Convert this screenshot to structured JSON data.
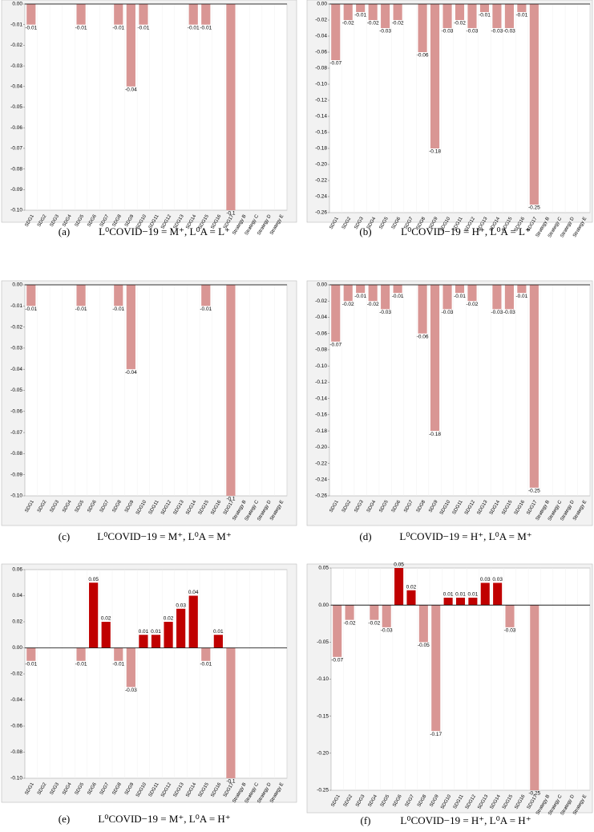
{
  "chart_data": [
    {
      "type": "bar",
      "label": "(a)",
      "caption": "L⁰COVID−19 = M⁺, L⁰A = L⁺",
      "categories": [
        "SDG1",
        "SDG2",
        "SDG3",
        "SDG4",
        "SDG5",
        "SDG6",
        "SDG7",
        "SDG8",
        "SDG9",
        "SDG10",
        "SDG11",
        "SDG12",
        "SDG13",
        "SDG14",
        "SDG15",
        "SDG16",
        "SDG17",
        "Strategy B",
        "Strategy C",
        "Strategy D",
        "Strategy E"
      ],
      "values": [
        -0.01,
        null,
        null,
        null,
        -0.01,
        null,
        null,
        -0.01,
        -0.04,
        -0.01,
        null,
        null,
        null,
        -0.01,
        -0.01,
        null,
        -0.1,
        null,
        null,
        null,
        null
      ],
      "negative_color": "#d99694",
      "ylim": [
        -0.1,
        0
      ],
      "yticks": [
        {
          "value": 0,
          "label": "0.00"
        },
        {
          "value": -0.01,
          "label": "-0.01"
        },
        {
          "value": -0.02,
          "label": "-0.02"
        },
        {
          "value": -0.03,
          "label": "-0.03"
        },
        {
          "value": -0.04,
          "label": "-0.04"
        },
        {
          "value": -0.05,
          "label": "-0.05"
        },
        {
          "value": -0.06,
          "label": "-0.06"
        },
        {
          "value": -0.07,
          "label": "-0.07"
        },
        {
          "value": -0.08,
          "label": "-0.08"
        },
        {
          "value": -0.09,
          "label": "-0.09"
        },
        {
          "value": -0.1,
          "label": "-0.10"
        }
      ]
    },
    {
      "type": "bar",
      "label": "(b)",
      "caption": "L⁰COVID−19 = H⁺, L⁰A = L⁺",
      "categories": [
        "SDG1",
        "SDG2",
        "SDG3",
        "SDG4",
        "SDG5",
        "SDG6",
        "SDG7",
        "SDG8",
        "SDG9",
        "SDG10",
        "SDG11",
        "SDG12",
        "SDG13",
        "SDG14",
        "SDG15",
        "SDG16",
        "SDG17",
        "Strategy B",
        "Strategy C",
        "Strategy D",
        "Strategy E"
      ],
      "values": [
        -0.07,
        -0.02,
        -0.01,
        -0.02,
        -0.03,
        -0.02,
        null,
        -0.06,
        -0.18,
        -0.03,
        -0.02,
        -0.03,
        -0.01,
        -0.03,
        -0.03,
        -0.01,
        -0.25,
        null,
        null,
        null,
        null
      ],
      "negative_color": "#d99694",
      "ylim": [
        -0.26,
        0
      ],
      "yticks": [
        {
          "value": 0,
          "label": "0.00"
        },
        {
          "value": -0.02,
          "label": "-0.02"
        },
        {
          "value": -0.04,
          "label": "-0.04"
        },
        {
          "value": -0.06,
          "label": "-0.06"
        },
        {
          "value": -0.08,
          "label": "-0.08"
        },
        {
          "value": -0.1,
          "label": "-0.10"
        },
        {
          "value": -0.12,
          "label": "-0.12"
        },
        {
          "value": -0.14,
          "label": "-0.14"
        },
        {
          "value": -0.16,
          "label": "-0.16"
        },
        {
          "value": -0.18,
          "label": "-0.18"
        },
        {
          "value": -0.2,
          "label": "-0.20"
        },
        {
          "value": -0.22,
          "label": "-0.22"
        },
        {
          "value": -0.24,
          "label": "-0.24"
        },
        {
          "value": -0.26,
          "label": "-0.26"
        }
      ]
    },
    {
      "type": "bar",
      "label": "(c)",
      "caption": "L⁰COVID−19 = M⁺, L⁰A = M⁺",
      "categories": [
        "SDG1",
        "SDG2",
        "SDG3",
        "SDG4",
        "SDG5",
        "SDG6",
        "SDG7",
        "SDG8",
        "SDG9",
        "SDG10",
        "SDG11",
        "SDG12",
        "SDG13",
        "SDG14",
        "SDG15",
        "SDG16",
        "SDG17",
        "Strategy B",
        "Strategy C",
        "Strategy D",
        "Strategy E"
      ],
      "values": [
        -0.01,
        null,
        null,
        null,
        -0.01,
        null,
        null,
        -0.01,
        -0.04,
        null,
        null,
        null,
        null,
        null,
        -0.01,
        null,
        -0.1,
        null,
        null,
        null,
        null
      ],
      "negative_color": "#d99694",
      "ylim": [
        -0.1,
        0
      ],
      "yticks": [
        {
          "value": 0,
          "label": "0.00"
        },
        {
          "value": -0.01,
          "label": "-0.01"
        },
        {
          "value": -0.02,
          "label": "-0.02"
        },
        {
          "value": -0.03,
          "label": "-0.03"
        },
        {
          "value": -0.04,
          "label": "-0.04"
        },
        {
          "value": -0.05,
          "label": "-0.05"
        },
        {
          "value": -0.06,
          "label": "-0.06"
        },
        {
          "value": -0.07,
          "label": "-0.07"
        },
        {
          "value": -0.08,
          "label": "-0.08"
        },
        {
          "value": -0.09,
          "label": "-0.09"
        },
        {
          "value": -0.1,
          "label": "-0.10"
        }
      ]
    },
    {
      "type": "bar",
      "label": "(d)",
      "caption": "L⁰COVID−19 = H⁺, L⁰A = M⁺",
      "categories": [
        "SDG1",
        "SDG2",
        "SDG3",
        "SDG4",
        "SDG5",
        "SDG6",
        "SDG7",
        "SDG8",
        "SDG9",
        "SDG10",
        "SDG11",
        "SDG12",
        "SDG13",
        "SDG14",
        "SDG15",
        "SDG16",
        "SDG17",
        "Strategy B",
        "Strategy C",
        "Strategy D",
        "Strategy E"
      ],
      "values": [
        -0.07,
        -0.02,
        -0.01,
        -0.02,
        -0.03,
        -0.01,
        null,
        -0.06,
        -0.18,
        -0.03,
        -0.01,
        -0.02,
        null,
        -0.03,
        -0.03,
        -0.01,
        -0.25,
        null,
        null,
        null,
        null
      ],
      "negative_color": "#d99694",
      "ylim": [
        -0.26,
        0
      ],
      "yticks": [
        {
          "value": 0,
          "label": "0.00"
        },
        {
          "value": -0.02,
          "label": "-0.02"
        },
        {
          "value": -0.04,
          "label": "-0.04"
        },
        {
          "value": -0.06,
          "label": "-0.06"
        },
        {
          "value": -0.08,
          "label": "-0.08"
        },
        {
          "value": -0.1,
          "label": "-0.10"
        },
        {
          "value": -0.12,
          "label": "-0.12"
        },
        {
          "value": -0.14,
          "label": "-0.14"
        },
        {
          "value": -0.16,
          "label": "-0.16"
        },
        {
          "value": -0.18,
          "label": "-0.18"
        },
        {
          "value": -0.2,
          "label": "-0.20"
        },
        {
          "value": -0.22,
          "label": "-0.22"
        },
        {
          "value": -0.24,
          "label": "-0.24"
        },
        {
          "value": -0.26,
          "label": "-0.26"
        }
      ]
    },
    {
      "type": "bar",
      "label": "(e)",
      "caption": "L⁰COVID−19 = M⁺, L⁰A = H⁺",
      "categories": [
        "SDG1",
        "SDG2",
        "SDG3",
        "SDG4",
        "SDG5",
        "SDG6",
        "SDG7",
        "SDG8",
        "SDG9",
        "SDG10",
        "SDG11",
        "SDG12",
        "SDG13",
        "SDG14",
        "SDG15",
        "SDG16",
        "SDG17",
        "Strategy B",
        "Strategy C",
        "Strategy D",
        "Strategy E"
      ],
      "values": [
        -0.01,
        null,
        null,
        null,
        -0.01,
        0.05,
        0.02,
        -0.01,
        -0.03,
        0.01,
        0.01,
        0.02,
        0.03,
        0.04,
        -0.01,
        0.01,
        -0.1,
        null,
        null,
        null,
        null
      ],
      "negative_color": "#d99694",
      "positive_color": "#c00000",
      "ylim": [
        -0.1,
        0.06
      ],
      "yticks": [
        {
          "value": 0.06,
          "label": "0.06"
        },
        {
          "value": 0.04,
          "label": "0.04"
        },
        {
          "value": 0.02,
          "label": "0.02"
        },
        {
          "value": 0,
          "label": "0.00"
        },
        {
          "value": -0.02,
          "label": "-0.02"
        },
        {
          "value": -0.04,
          "label": "-0.04"
        },
        {
          "value": -0.06,
          "label": "-0.06"
        },
        {
          "value": -0.08,
          "label": "-0.08"
        },
        {
          "value": -0.1,
          "label": "-0.10"
        }
      ]
    },
    {
      "type": "bar",
      "label": "(f)",
      "caption": "L⁰COVID−19 = H⁺, L⁰A = H⁺",
      "categories": [
        "SDG1",
        "SDG2",
        "SDG3",
        "SDG4",
        "SDG5",
        "SDG6",
        "SDG7",
        "SDG8",
        "SDG9",
        "SDG10",
        "SDG11",
        "SDG12",
        "SDG13",
        "SDG14",
        "SDG15",
        "SDG16",
        "SDG17",
        "Strategy B",
        "Strategy C",
        "Strategy D",
        "Strategy E"
      ],
      "values": [
        -0.07,
        -0.02,
        null,
        -0.02,
        -0.03,
        0.05,
        0.02,
        -0.05,
        -0.17,
        0.01,
        0.01,
        0.01,
        0.03,
        0.03,
        -0.03,
        null,
        -0.25,
        null,
        null,
        null,
        null
      ],
      "negative_color": "#d99694",
      "positive_color": "#c00000",
      "ylim": [
        -0.25,
        0.05
      ],
      "yticks": [
        {
          "value": 0.05,
          "label": "0.05"
        },
        {
          "value": 0,
          "label": "0.00"
        },
        {
          "value": -0.05,
          "label": "-0.05"
        },
        {
          "value": -0.1,
          "label": "-0.10"
        },
        {
          "value": -0.15,
          "label": "-0.15"
        },
        {
          "value": -0.2,
          "label": "-0.20"
        },
        {
          "value": -0.25,
          "label": "-0.25"
        }
      ]
    }
  ]
}
